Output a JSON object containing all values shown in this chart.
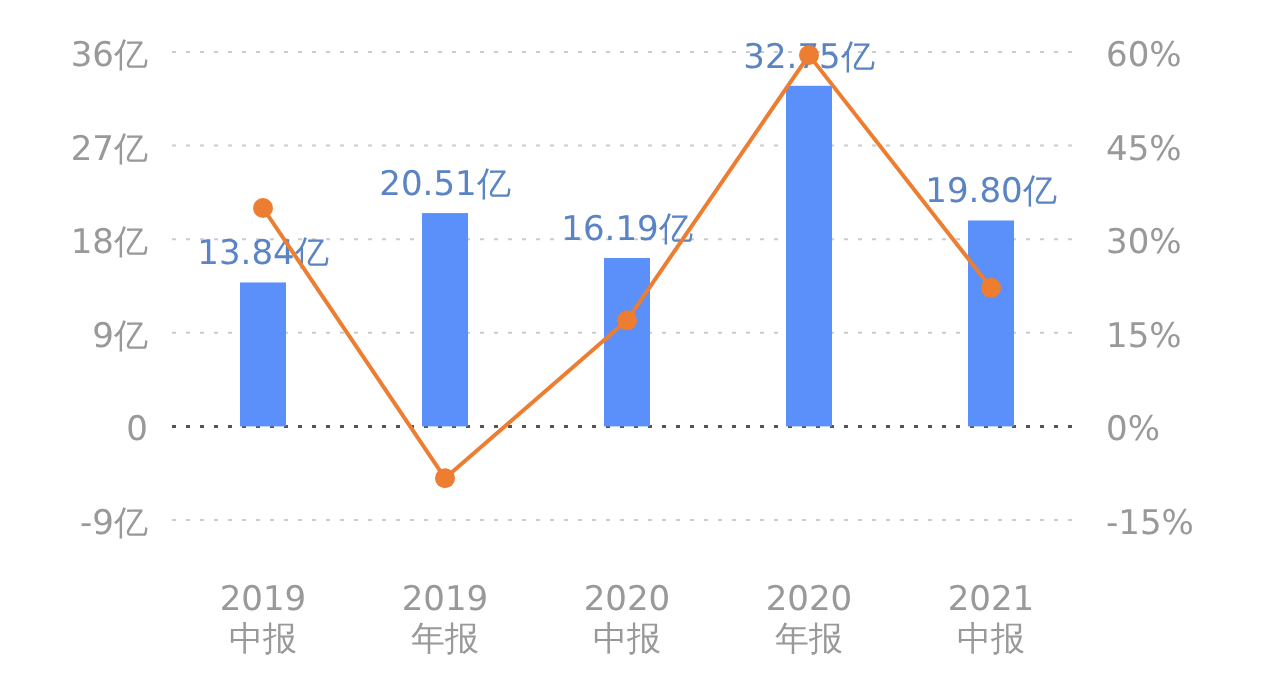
{
  "chart_data": {
    "type": "bar",
    "categories": [
      "2019\n中报",
      "2019\n年报",
      "2020\n中报",
      "2020\n年报",
      "2021\n中报"
    ],
    "series": [
      {
        "color": "#5b8ff9",
        "values": [
          13.84,
          20.51,
          16.19,
          32.75,
          19.8
        ],
        "value_labels": [
          "13.84亿",
          "20.51亿",
          "16.19亿",
          "32.75亿",
          "19.80亿"
        ]
      },
      {
        "type": "line",
        "axis": "y2",
        "color": "#ed7d31",
        "marker": "circle",
        "values": [
          35,
          -8.3,
          17,
          59.5,
          22.2
        ]
      }
    ],
    "ylim": [
      -9,
      36
    ],
    "yticks": [
      {
        "value": -9,
        "label": "-9亿"
      },
      0,
      {
        "value": 9,
        "label": "9亿"
      },
      {
        "value": 18,
        "label": "18亿"
      },
      {
        "value": 27,
        "label": "27亿"
      },
      {
        "value": 36,
        "label": "36亿"
      }
    ],
    "y2lim": [
      -15,
      60
    ],
    "y2ticks": [
      {
        "value": -15,
        "label": "-15%"
      },
      {
        "value": 0,
        "label": "0%"
      },
      {
        "value": 15,
        "label": "15%"
      },
      {
        "value": 30,
        "label": "30%"
      },
      {
        "value": 45,
        "label": "45%"
      },
      {
        "value": 60,
        "label": "60%"
      }
    ],
    "ref_lines": [
      {
        "axis": "y",
        "value": 0,
        "color": "#555555",
        "line_style": "dotted"
      }
    ],
    "grid": "y"
  }
}
